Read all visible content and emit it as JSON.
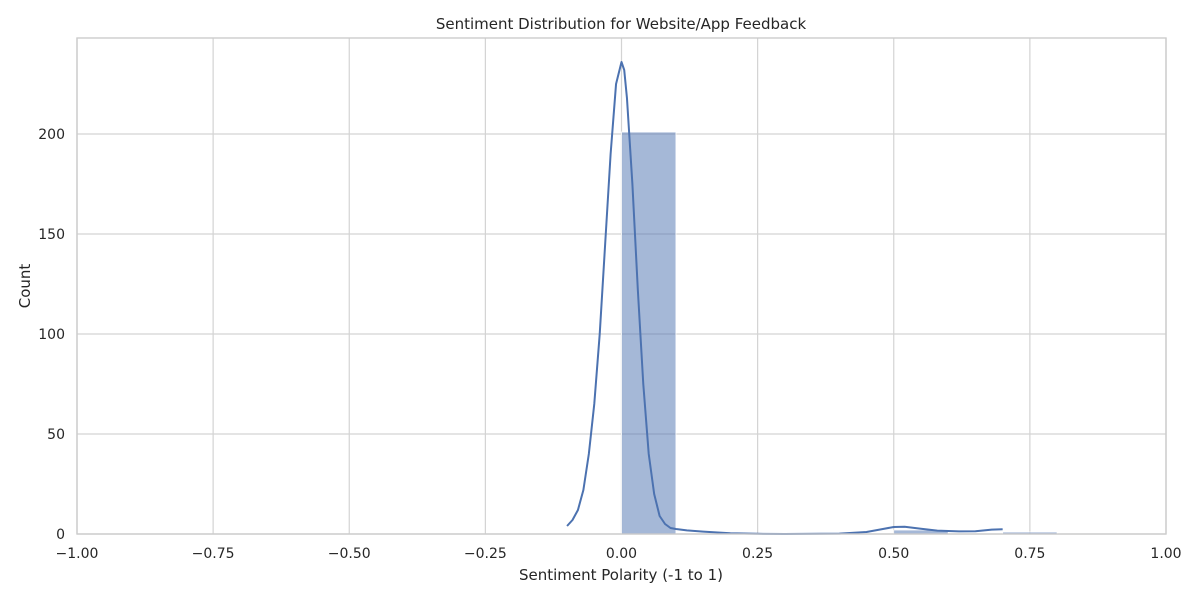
{
  "chart_data": {
    "type": "bar",
    "title": "Sentiment Distribution for Website/App Feedback",
    "xlabel": "Sentiment Polarity (-1 to 1)",
    "ylabel": "Count",
    "xlim": [
      -1.0,
      1.0
    ],
    "ylim": [
      0,
      248
    ],
    "grid": true,
    "x_ticks": [
      -1.0,
      -0.75,
      -0.5,
      -0.25,
      0.0,
      0.25,
      0.5,
      0.75,
      1.0
    ],
    "x_tick_labels": [
      "−1.00",
      "−0.75",
      "−0.50",
      "−0.25",
      "0.00",
      "0.25",
      "0.50",
      "0.75",
      "1.00"
    ],
    "y_ticks": [
      0,
      50,
      100,
      150,
      200
    ],
    "y_tick_labels": [
      "0",
      "50",
      "100",
      "150",
      "200"
    ],
    "bar_color": "#4c72b0",
    "line_color": "#4c72b0",
    "histogram_bins": [
      {
        "x0": 0.0,
        "x1": 0.1,
        "count": 201
      },
      {
        "x0": 0.5,
        "x1": 0.6,
        "count": 2
      },
      {
        "x0": 0.7,
        "x1": 0.8,
        "count": 1
      }
    ],
    "kde_points": [
      [
        -0.1,
        4
      ],
      [
        -0.09,
        7
      ],
      [
        -0.08,
        12
      ],
      [
        -0.07,
        22
      ],
      [
        -0.06,
        40
      ],
      [
        -0.05,
        65
      ],
      [
        -0.04,
        100
      ],
      [
        -0.03,
        145
      ],
      [
        -0.02,
        190
      ],
      [
        -0.01,
        225
      ],
      [
        0.0,
        236
      ],
      [
        0.005,
        232
      ],
      [
        0.01,
        218
      ],
      [
        0.02,
        175
      ],
      [
        0.03,
        122
      ],
      [
        0.04,
        75
      ],
      [
        0.05,
        40
      ],
      [
        0.06,
        20
      ],
      [
        0.07,
        9
      ],
      [
        0.08,
        5
      ],
      [
        0.09,
        3
      ],
      [
        0.1,
        2.5
      ],
      [
        0.12,
        1.8
      ],
      [
        0.15,
        1.2
      ],
      [
        0.2,
        0.4
      ],
      [
        0.25,
        0.1
      ],
      [
        0.3,
        0
      ],
      [
        0.4,
        0.2
      ],
      [
        0.45,
        1
      ],
      [
        0.48,
        2.5
      ],
      [
        0.5,
        3.5
      ],
      [
        0.52,
        3.6
      ],
      [
        0.55,
        2.6
      ],
      [
        0.58,
        1.7
      ],
      [
        0.62,
        1.3
      ],
      [
        0.65,
        1.4
      ],
      [
        0.68,
        2.2
      ],
      [
        0.7,
        2.4
      ]
    ]
  }
}
